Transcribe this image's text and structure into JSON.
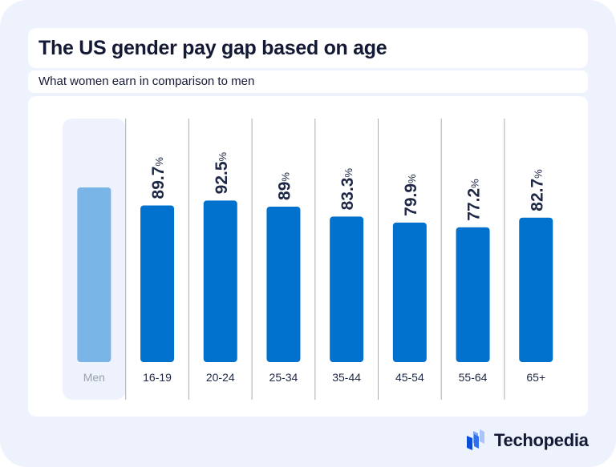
{
  "chart_data": {
    "type": "bar",
    "title": "The US gender pay gap based on age",
    "subtitle": "What women earn in comparison to men",
    "categories": [
      "Men",
      "16-19",
      "20-24",
      "25-34",
      "35-44",
      "45-54",
      "55-64",
      "65+"
    ],
    "values": [
      100,
      89.7,
      92.5,
      89,
      83.3,
      79.9,
      77.2,
      82.7
    ],
    "data_labels": [
      "",
      "89.7",
      "92.5",
      "89",
      "83.3",
      "79.9",
      "77.2",
      "82.7"
    ],
    "unit": "%",
    "ylim": [
      0,
      100
    ],
    "grid": false,
    "legend": "none",
    "colors": {
      "baseline": "#7ab5e8",
      "bars": "#0071cc",
      "baseline_bg": "#eef2fd",
      "label": "#1d2745",
      "category": "#1d2745",
      "baseline_category": "#9aa0b0"
    }
  },
  "brand": {
    "name": "Techopedia",
    "icon": "techopedia-logo-icon"
  }
}
